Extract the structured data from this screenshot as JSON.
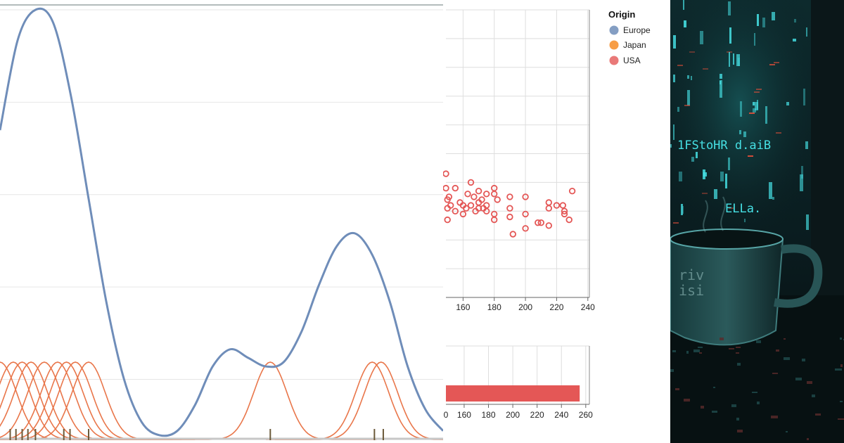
{
  "chart_data": [
    {
      "type": "line",
      "subtype": "density-with-rug",
      "title": "",
      "xlabel": "",
      "ylabel": "",
      "grid": true,
      "x_range": [
        0,
        100
      ],
      "y_range": [
        0,
        1
      ],
      "series": [
        {
          "color": "#6f8db9",
          "x": [
            0,
            4,
            8,
            12,
            16,
            20,
            24,
            28,
            32,
            36,
            40,
            44,
            48,
            52,
            56,
            60,
            64,
            68,
            72,
            76,
            80,
            84,
            88,
            92,
            96,
            100
          ],
          "y": [
            0.72,
            0.93,
            1.0,
            0.97,
            0.8,
            0.56,
            0.32,
            0.14,
            0.04,
            0.01,
            0.02,
            0.08,
            0.17,
            0.21,
            0.19,
            0.17,
            0.18,
            0.25,
            0.36,
            0.45,
            0.48,
            0.43,
            0.32,
            0.17,
            0.07,
            0.02
          ]
        }
      ],
      "kernels": {
        "color": "#e9764a",
        "peak": 0.18,
        "width": 7.5,
        "centers": [
          0,
          3,
          5,
          7,
          10,
          13,
          15,
          17,
          20,
          61,
          84,
          86
        ]
      },
      "rug": {
        "color": "#6b5a3a",
        "positions": [
          2.3,
          3.6,
          5.0,
          6.3,
          8.0,
          14.4,
          15.8,
          20.0,
          61.0,
          84.5,
          86.5
        ]
      }
    },
    {
      "type": "scatter",
      "title": "",
      "xlabel": "",
      "ylabel": "",
      "grid": true,
      "x_ticks": [
        160,
        180,
        200,
        220,
        240
      ],
      "x_range": [
        149,
        241
      ],
      "y_range": [
        0,
        10
      ],
      "series": [
        {
          "name": "USA",
          "color": "#e45756",
          "points": [
            [
              149,
              4.3
            ],
            [
              149,
              3.8
            ],
            [
              150,
              3.4
            ],
            [
              150,
              3.1
            ],
            [
              150,
              2.7
            ],
            [
              151,
              3.5
            ],
            [
              152,
              3.2
            ],
            [
              155,
              3.8
            ],
            [
              155,
              3.0
            ],
            [
              158,
              3.3
            ],
            [
              160,
              3.2
            ],
            [
              160,
              2.9
            ],
            [
              162,
              3.1
            ],
            [
              163,
              3.6
            ],
            [
              165,
              4.0
            ],
            [
              165,
              3.2
            ],
            [
              167,
              3.5
            ],
            [
              168,
              3.0
            ],
            [
              170,
              3.7
            ],
            [
              170,
              3.3
            ],
            [
              170,
              3.1
            ],
            [
              172,
              3.4
            ],
            [
              173,
              3.1
            ],
            [
              175,
              3.6
            ],
            [
              175,
              3.2
            ],
            [
              175,
              3.0
            ],
            [
              180,
              3.8
            ],
            [
              180,
              3.6
            ],
            [
              180,
              2.9
            ],
            [
              180,
              2.7
            ],
            [
              182,
              3.4
            ],
            [
              190,
              3.5
            ],
            [
              190,
              3.1
            ],
            [
              190,
              2.8
            ],
            [
              192,
              2.2
            ],
            [
              200,
              3.5
            ],
            [
              200,
              2.9
            ],
            [
              200,
              2.4
            ],
            [
              208,
              2.6
            ],
            [
              210,
              2.6
            ],
            [
              215,
              3.3
            ],
            [
              215,
              3.1
            ],
            [
              215,
              2.5
            ],
            [
              220,
              3.2
            ],
            [
              224,
              3.2
            ],
            [
              225,
              3.0
            ],
            [
              225,
              2.9
            ],
            [
              228,
              2.7
            ],
            [
              230,
              3.7
            ]
          ]
        }
      ]
    },
    {
      "type": "bar",
      "orientation": "horizontal",
      "title": "",
      "xlabel": "",
      "ylabel": "",
      "grid": true,
      "x_ticks": [
        160,
        180,
        200,
        220,
        240,
        260
      ],
      "x_ticks_partial": [
        "0"
      ],
      "x_range": [
        145,
        263
      ],
      "bars": [
        {
          "series": "USA",
          "value": 255,
          "color": "#e45756"
        }
      ]
    }
  ],
  "legend": {
    "title": "Origin",
    "placement": "top-right",
    "items": [
      {
        "label": "Europe",
        "color": "#6f8db9"
      },
      {
        "label": "Japan",
        "color": "#f58518"
      },
      {
        "label": "USA",
        "color": "#e45756"
      }
    ]
  },
  "artwork": {
    "description_colors": {
      "background": "#0a1618",
      "glow": "#46e0e4",
      "accent": "#e8503a"
    },
    "glyph_lines": [
      "1FStoHR d.aiB",
      "ELLa.",
      "riv",
      "isi"
    ]
  }
}
